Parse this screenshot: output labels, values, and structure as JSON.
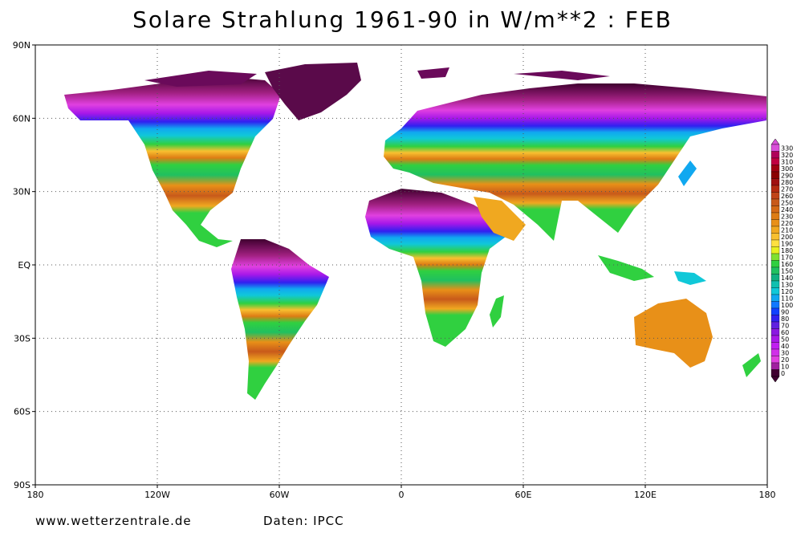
{
  "title": "Solare Strahlung 1961-90 in W/m**2 : FEB",
  "footer": {
    "left": "www.wetterzentrale.de",
    "right": "Daten: IPCC"
  },
  "axes": {
    "lat_labels": [
      "90N",
      "60N",
      "30N",
      "EQ",
      "30S",
      "60S",
      "90S"
    ],
    "lon_labels": [
      "180",
      "120W",
      "60W",
      "0",
      "60E",
      "120E",
      "180"
    ],
    "lat_range": [
      -90,
      90
    ],
    "lon_range": [
      -180,
      180
    ],
    "grid": true
  },
  "colorbar": {
    "labels": [
      "330",
      "320",
      "310",
      "300",
      "290",
      "280",
      "270",
      "260",
      "250",
      "240",
      "230",
      "220",
      "210",
      "200",
      "190",
      "180",
      "170",
      "160",
      "150",
      "140",
      "130",
      "120",
      "110",
      "100",
      "90",
      "80",
      "70",
      "60",
      "50",
      "40",
      "30",
      "20",
      "10",
      "0"
    ],
    "colors": [
      "#d94fd9",
      "#b0005a",
      "#c00040",
      "#a00010",
      "#8b0000",
      "#a01010",
      "#b42a10",
      "#c04418",
      "#c85a1a",
      "#d46a16",
      "#dd7c14",
      "#e89018",
      "#f0a820",
      "#f8c030",
      "#ffe040",
      "#e8f020",
      "#80e030",
      "#30d040",
      "#20c060",
      "#10b080",
      "#10c0b0",
      "#10c8d8",
      "#10a8f0",
      "#1078ff",
      "#1040ff",
      "#3020f0",
      "#6020e0",
      "#8a18e0",
      "#a818e8",
      "#c020f0",
      "#d030e8",
      "#e040e0",
      "#a020a0",
      "#400030"
    ]
  },
  "map_colors": {
    "cold_magenta": "#e040e0",
    "purple": "#8a18e0",
    "blue": "#1040ff",
    "cyan": "#10c8d8",
    "green": "#30d040",
    "yellow": "#f8c030",
    "orange": "#e89018",
    "red_brown": "#c04418",
    "dark_plum": "#400030"
  }
}
